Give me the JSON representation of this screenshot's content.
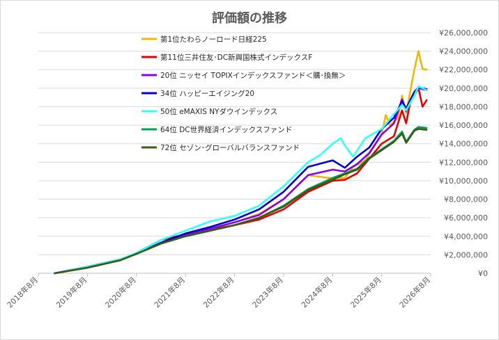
{
  "chart_data": {
    "type": "line",
    "title": "評価額の推移",
    "xlabel": "",
    "ylabel": "",
    "x_tick_labels": [
      "2018年8月",
      "2019年8月",
      "2020年8月",
      "2021年8月",
      "2022年8月",
      "2023年8月",
      "2024年8月",
      "2025年8月",
      "2026年8月"
    ],
    "y_tick_labels": [
      "¥0",
      "¥2,000,000",
      "¥4,000,000",
      "¥6,000,000",
      "¥8,000,000",
      "¥10,000,000",
      "¥12,000,000",
      "¥14,000,000",
      "¥16,000,000",
      "¥18,000,000",
      "¥20,000,000",
      "¥22,000,000",
      "¥24,000,000",
      "¥26,000,000"
    ],
    "ylim": [
      0,
      26000000
    ],
    "xlim": [
      "2018-08",
      "2026-08"
    ],
    "grid": "horizontal",
    "legend_position": "top-left",
    "series": [
      {
        "name": "第1位たわらノーロード日経225",
        "color": "#f2b705",
        "points": [
          [
            "2018-12",
            0
          ],
          [
            "2019-08",
            600000
          ],
          [
            "2020-04",
            1400000
          ],
          [
            "2020-08",
            2100000
          ],
          [
            "2021-02",
            3300000
          ],
          [
            "2021-08",
            4200000
          ],
          [
            "2022-02",
            4800000
          ],
          [
            "2022-08",
            5500000
          ],
          [
            "2023-02",
            6400000
          ],
          [
            "2023-08",
            8000000
          ],
          [
            "2024-02",
            10600000
          ],
          [
            "2024-07",
            10300000
          ],
          [
            "2024-11",
            10300000
          ],
          [
            "2025-01",
            11500000
          ],
          [
            "2025-04",
            12200000
          ],
          [
            "2025-08",
            15000000
          ],
          [
            "2025-09",
            17100000
          ],
          [
            "2025-10",
            16000000
          ],
          [
            "2025-12",
            16800000
          ],
          [
            "2026-01",
            19200000
          ],
          [
            "2026-02",
            17300000
          ],
          [
            "2026-04",
            22000000
          ],
          [
            "2026-05",
            24000000
          ],
          [
            "2026-06",
            22100000
          ],
          [
            "2026-07",
            22000000
          ]
        ]
      },
      {
        "name": "第11位三井住友･DC新興国株式インデックスF",
        "color": "#e00000",
        "points": [
          [
            "2018-12",
            0
          ],
          [
            "2019-08",
            600000
          ],
          [
            "2020-04",
            1400000
          ],
          [
            "2020-08",
            2200000
          ],
          [
            "2021-02",
            3600000
          ],
          [
            "2021-08",
            4200000
          ],
          [
            "2022-02",
            4700000
          ],
          [
            "2022-08",
            5200000
          ],
          [
            "2023-02",
            5800000
          ],
          [
            "2023-08",
            6900000
          ],
          [
            "2024-02",
            8800000
          ],
          [
            "2024-05",
            9400000
          ],
          [
            "2024-08",
            10000000
          ],
          [
            "2024-11",
            10100000
          ],
          [
            "2025-02",
            10800000
          ],
          [
            "2025-05",
            12400000
          ],
          [
            "2025-08",
            14000000
          ],
          [
            "2025-11",
            14800000
          ],
          [
            "2026-01",
            17600000
          ],
          [
            "2026-02",
            16200000
          ],
          [
            "2026-03",
            18500000
          ],
          [
            "2026-05",
            20000000
          ],
          [
            "2026-06",
            18000000
          ],
          [
            "2026-07",
            18700000
          ]
        ]
      },
      {
        "name": "20位 ニッセイ TOPIXインデックスファンド＜購･換無＞",
        "color": "#8a00e6",
        "points": [
          [
            "2018-12",
            0
          ],
          [
            "2019-08",
            700000
          ],
          [
            "2020-04",
            1500000
          ],
          [
            "2020-08",
            2100000
          ],
          [
            "2021-02",
            3200000
          ],
          [
            "2021-08",
            4200000
          ],
          [
            "2022-02",
            4800000
          ],
          [
            "2022-08",
            5500000
          ],
          [
            "2023-02",
            6300000
          ],
          [
            "2023-08",
            8000000
          ],
          [
            "2024-02",
            10600000
          ],
          [
            "2024-08",
            11200000
          ],
          [
            "2024-11",
            11000000
          ],
          [
            "2025-02",
            11800000
          ],
          [
            "2025-05",
            13000000
          ],
          [
            "2025-08",
            15000000
          ],
          [
            "2025-11",
            16200000
          ],
          [
            "2026-01",
            18800000
          ],
          [
            "2026-02",
            17500000
          ],
          [
            "2026-04",
            19400000
          ],
          [
            "2026-05",
            20000000
          ],
          [
            "2026-07",
            19800000
          ]
        ]
      },
      {
        "name": "34位 ハッピーエイジング20",
        "color": "#0000cc",
        "points": [
          [
            "2018-12",
            0
          ],
          [
            "2019-08",
            700000
          ],
          [
            "2020-04",
            1500000
          ],
          [
            "2020-08",
            2100000
          ],
          [
            "2021-02",
            3300000
          ],
          [
            "2021-08",
            4300000
          ],
          [
            "2022-02",
            5000000
          ],
          [
            "2022-08",
            5800000
          ],
          [
            "2023-02",
            6900000
          ],
          [
            "2023-08",
            8800000
          ],
          [
            "2024-02",
            11500000
          ],
          [
            "2024-08",
            12200000
          ],
          [
            "2024-11",
            11400000
          ],
          [
            "2025-02",
            12600000
          ],
          [
            "2025-05",
            13600000
          ],
          [
            "2025-08",
            15600000
          ],
          [
            "2025-11",
            16800000
          ],
          [
            "2026-01",
            18600000
          ],
          [
            "2026-02",
            17800000
          ],
          [
            "2026-04",
            19600000
          ],
          [
            "2026-05",
            20100000
          ],
          [
            "2026-07",
            19900000
          ]
        ]
      },
      {
        "name": "50位 eMAXIS NYダウインデックス",
        "color": "#33ffff",
        "points": [
          [
            "2018-12",
            0
          ],
          [
            "2019-08",
            700000
          ],
          [
            "2020-04",
            1500000
          ],
          [
            "2020-08",
            2200000
          ],
          [
            "2021-02",
            3600000
          ],
          [
            "2021-08",
            4600000
          ],
          [
            "2022-02",
            5600000
          ],
          [
            "2022-08",
            6200000
          ],
          [
            "2023-02",
            7300000
          ],
          [
            "2023-08",
            9400000
          ],
          [
            "2024-02",
            12000000
          ],
          [
            "2024-05",
            12800000
          ],
          [
            "2024-08",
            14000000
          ],
          [
            "2024-10",
            14600000
          ],
          [
            "2024-11",
            13800000
          ],
          [
            "2025-01",
            12600000
          ],
          [
            "2025-04",
            14600000
          ],
          [
            "2025-08",
            15600000
          ],
          [
            "2025-11",
            17200000
          ],
          [
            "2026-01",
            18200000
          ],
          [
            "2026-02",
            17600000
          ],
          [
            "2026-04",
            19200000
          ],
          [
            "2026-05",
            20200000
          ],
          [
            "2026-07",
            19800000
          ]
        ]
      },
      {
        "name": "64位 DC世界経済インデックスファンド",
        "color": "#00a050",
        "points": [
          [
            "2018-12",
            0
          ],
          [
            "2019-08",
            600000
          ],
          [
            "2020-04",
            1400000
          ],
          [
            "2020-08",
            2100000
          ],
          [
            "2021-02",
            3200000
          ],
          [
            "2021-08",
            4000000
          ],
          [
            "2022-02",
            4600000
          ],
          [
            "2022-08",
            5200000
          ],
          [
            "2023-02",
            6000000
          ],
          [
            "2023-08",
            7300000
          ],
          [
            "2024-02",
            9100000
          ],
          [
            "2024-08",
            10300000
          ],
          [
            "2024-11",
            10800000
          ],
          [
            "2025-02",
            11300000
          ],
          [
            "2025-05",
            12500000
          ],
          [
            "2025-08",
            13400000
          ],
          [
            "2025-11",
            14300000
          ],
          [
            "2026-01",
            15300000
          ],
          [
            "2026-02",
            14200000
          ],
          [
            "2026-04",
            15500000
          ],
          [
            "2026-05",
            15800000
          ],
          [
            "2026-07",
            15700000
          ]
        ]
      },
      {
        "name": "72位 セゾン･グローバルバランスファンド",
        "color": "#3a5a1a",
        "points": [
          [
            "2018-12",
            0
          ],
          [
            "2019-08",
            600000
          ],
          [
            "2020-04",
            1400000
          ],
          [
            "2020-08",
            2100000
          ],
          [
            "2021-02",
            3200000
          ],
          [
            "2021-08",
            4000000
          ],
          [
            "2022-02",
            4600000
          ],
          [
            "2022-08",
            5200000
          ],
          [
            "2023-02",
            6000000
          ],
          [
            "2023-08",
            7200000
          ],
          [
            "2024-02",
            9000000
          ],
          [
            "2024-08",
            10100000
          ],
          [
            "2024-11",
            10700000
          ],
          [
            "2025-02",
            11200000
          ],
          [
            "2025-05",
            12400000
          ],
          [
            "2025-08",
            13300000
          ],
          [
            "2025-11",
            14200000
          ],
          [
            "2026-01",
            15100000
          ],
          [
            "2026-02",
            14100000
          ],
          [
            "2026-04",
            15400000
          ],
          [
            "2026-05",
            15600000
          ],
          [
            "2026-07",
            15500000
          ]
        ]
      }
    ]
  }
}
